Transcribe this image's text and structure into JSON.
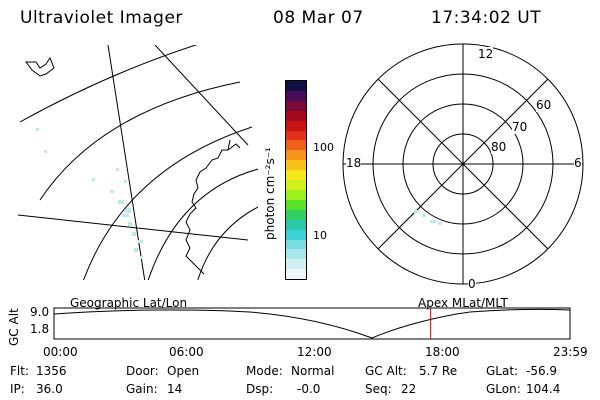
{
  "header": {
    "instrument": "Ultraviolet Imager",
    "date": "08 Mar 07",
    "time": "17:34:02 UT"
  },
  "map_panel": {
    "caption": "Geographic Lat/Lon"
  },
  "polar_panel": {
    "caption": "Apex MLat/MLT",
    "mlt_labels": {
      "top": "12",
      "right": "6",
      "bottom": "0",
      "left": "18"
    },
    "lat_labels": [
      "60",
      "70",
      "80"
    ]
  },
  "colorbar": {
    "unit_label": "photon cm⁻²s⁻¹",
    "ticks": [
      "100",
      "10"
    ],
    "colors": [
      "#101040",
      "#4a0a5a",
      "#7a0a3a",
      "#a00a1a",
      "#c81414",
      "#e2301c",
      "#f0601a",
      "#f5941a",
      "#f8c01a",
      "#f4e81c",
      "#d2f01e",
      "#9cf020",
      "#5ae028",
      "#30d060",
      "#28c8a8",
      "#3cd0d8",
      "#78dce4",
      "#a8e8ec",
      "#d0f0f2",
      "#eef8f8"
    ]
  },
  "orbit_plot": {
    "axis_label": "GC Alt",
    "y_ticks": [
      "9.0",
      "1.8"
    ],
    "x_ticks": [
      "00:00",
      "06:00",
      "12:00",
      "18:00",
      "23:59"
    ],
    "current_marker_time_fraction": 0.73
  },
  "status": {
    "flt": {
      "label": "Flt:",
      "value": "1356"
    },
    "ip": {
      "label": "IP:",
      "value": "36.0"
    },
    "door": {
      "label": "Door:",
      "value": "Open"
    },
    "gain": {
      "label": "Gain:",
      "value": "14"
    },
    "mode": {
      "label": "Mode:",
      "value": "Normal"
    },
    "dsp": {
      "label": "Dsp:",
      "value": "-0.0"
    },
    "gcalt": {
      "label": "GC Alt:",
      "value": "5.7 Re"
    },
    "seq": {
      "label": "Seq:",
      "value": "22"
    },
    "glat": {
      "label": "GLat:",
      "value": "-56.9"
    },
    "glon": {
      "label": "GLon:",
      "value": "104.4"
    }
  }
}
